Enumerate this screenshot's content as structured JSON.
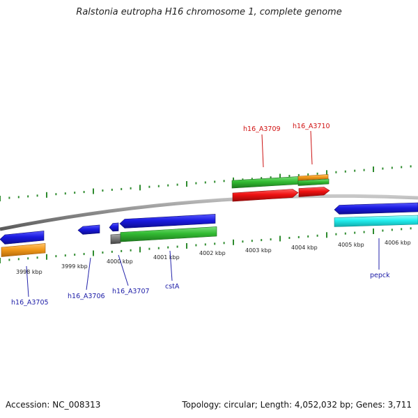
{
  "title": "Ralstonia eutropha H16 chromosome 1, complete genome",
  "footer": {
    "accession": "Accession: NC_008313",
    "summary": "Topology: circular; Length: 4,052,032 bp; Genes: 3,711"
  },
  "kbp_ticks": [
    "3998 kbp",
    "3999 kbp",
    "4000 kbp",
    "4001 kbp",
    "4002 kbp",
    "4003 kbp",
    "4004 kbp",
    "4005 kbp",
    "4006 kbp"
  ],
  "gene_labels": {
    "h16_A3705": "h16_A3705",
    "h16_A3706": "h16_A3706",
    "h16_A3707": "h16_A3707",
    "cstA": "cstA",
    "pepck": "pepck",
    "h16_A3709": "h16_A3709",
    "h16_A3710": "h16_A3710"
  },
  "colors": {
    "backbone": "#8a8a8a",
    "gene_blue": "#1a1ae0",
    "gene_green": "#33bb33",
    "gene_red": "#ee1111",
    "gene_orange": "#f39a1b",
    "gene_cyan": "#22eeee",
    "gene_gray": "#777777",
    "tick_green": "#2e8b2e",
    "label_blue": "#1a1aa6",
    "label_red": "#d01010"
  }
}
